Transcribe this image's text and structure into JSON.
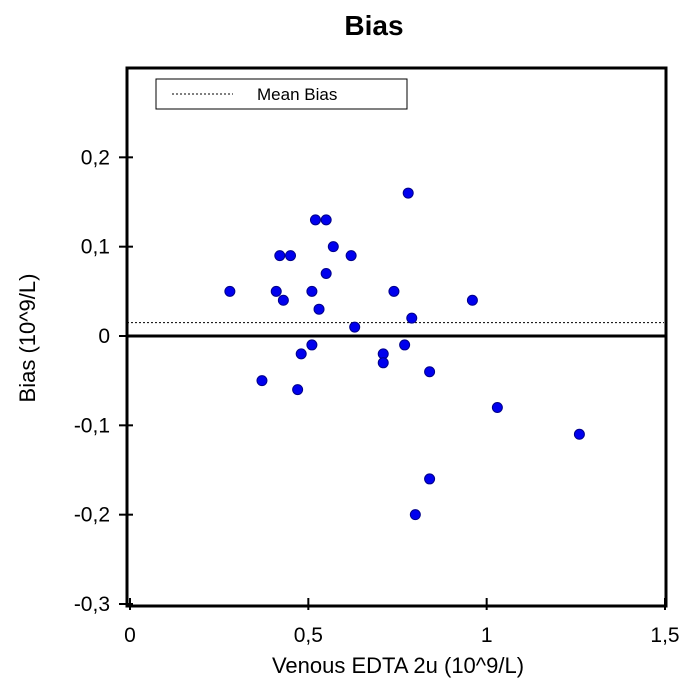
{
  "chart_data": {
    "type": "scatter",
    "title": "Bias",
    "xlabel": "Venous EDTA 2u (10^9/L)",
    "ylabel": "Bias (10^9/L)",
    "xlim": [
      0,
      1.5
    ],
    "ylim": [
      -0.3,
      0.3
    ],
    "x_ticks": [
      {
        "value": 0,
        "label": "0"
      },
      {
        "value": 0.5,
        "label": "0,5"
      },
      {
        "value": 1,
        "label": "1"
      },
      {
        "value": 1.5,
        "label": "1,5"
      }
    ],
    "y_ticks": [
      {
        "value": 0.2,
        "label": "0,2"
      },
      {
        "value": 0.1,
        "label": "0,1"
      },
      {
        "value": 0,
        "label": "0"
      },
      {
        "value": -0.1,
        "label": "-0,1"
      },
      {
        "value": -0.2,
        "label": "-0,2"
      },
      {
        "value": -0.3,
        "label": "-0,3"
      }
    ],
    "mean_bias": 0.015,
    "legend": {
      "placement": "top-left",
      "entries": [
        "Mean Bias"
      ]
    },
    "grid": false,
    "point_color": "#0000ee",
    "points": [
      {
        "x": 0.28,
        "y": 0.05
      },
      {
        "x": 0.37,
        "y": -0.05
      },
      {
        "x": 0.41,
        "y": 0.05
      },
      {
        "x": 0.42,
        "y": 0.09
      },
      {
        "x": 0.43,
        "y": 0.04
      },
      {
        "x": 0.45,
        "y": 0.09
      },
      {
        "x": 0.47,
        "y": -0.06
      },
      {
        "x": 0.48,
        "y": -0.02
      },
      {
        "x": 0.51,
        "y": 0.05
      },
      {
        "x": 0.51,
        "y": -0.01
      },
      {
        "x": 0.52,
        "y": 0.13
      },
      {
        "x": 0.53,
        "y": 0.03
      },
      {
        "x": 0.55,
        "y": 0.13
      },
      {
        "x": 0.55,
        "y": 0.07
      },
      {
        "x": 0.57,
        "y": 0.1
      },
      {
        "x": 0.62,
        "y": 0.09
      },
      {
        "x": 0.63,
        "y": 0.01
      },
      {
        "x": 0.71,
        "y": -0.02
      },
      {
        "x": 0.71,
        "y": -0.03
      },
      {
        "x": 0.74,
        "y": 0.05
      },
      {
        "x": 0.77,
        "y": -0.01
      },
      {
        "x": 0.78,
        "y": 0.16
      },
      {
        "x": 0.79,
        "y": 0.02
      },
      {
        "x": 0.8,
        "y": -0.2
      },
      {
        "x": 0.84,
        "y": -0.04
      },
      {
        "x": 0.84,
        "y": -0.16
      },
      {
        "x": 0.96,
        "y": 0.04
      },
      {
        "x": 1.03,
        "y": -0.08
      },
      {
        "x": 1.26,
        "y": -0.11
      }
    ]
  }
}
